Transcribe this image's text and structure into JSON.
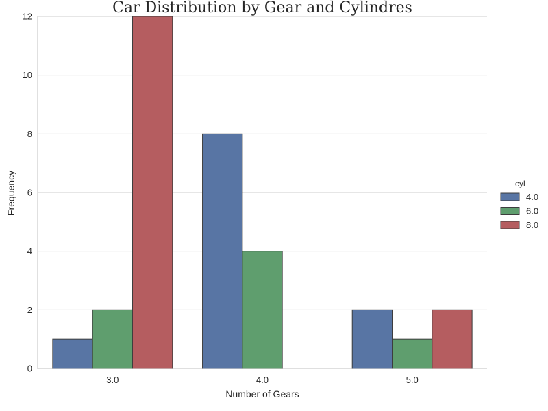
{
  "chart_data": {
    "type": "bar",
    "title": "Car Distribution by Gear and Cylindres",
    "xlabel": "Number of Gears",
    "ylabel": "Frequency",
    "categories": [
      "3.0",
      "4.0",
      "5.0"
    ],
    "ylim": [
      0,
      12
    ],
    "yticks": [
      0,
      2,
      4,
      6,
      8,
      10,
      12
    ],
    "grid": true,
    "legend": {
      "title": "cyl",
      "placement": "right"
    },
    "series": [
      {
        "name": "4.0",
        "color": "#5875a4",
        "values": [
          1,
          8,
          2
        ]
      },
      {
        "name": "6.0",
        "color": "#5f9e6e",
        "values": [
          2,
          4,
          1
        ]
      },
      {
        "name": "8.0",
        "color": "#b55d60",
        "values": [
          12,
          0,
          2
        ]
      }
    ]
  }
}
